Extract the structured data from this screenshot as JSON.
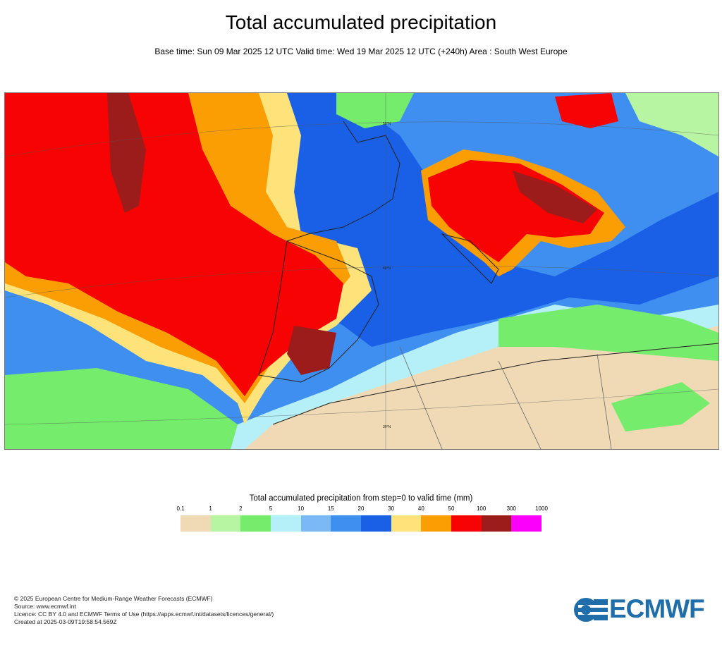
{
  "header": {
    "title": "Total accumulated precipitation",
    "subtitle": "Base time: Sun 09 Mar 2025 12 UTC Valid time: Wed 19 Mar 2025 12 UTC (+240h) Area : South West Europe"
  },
  "map": {
    "region": "South West Europe",
    "gridlabels": [
      "30°N",
      "40°N",
      "50°N"
    ]
  },
  "legend": {
    "title": "Total accumulated precipitation from step=0 to valid time (mm)",
    "ticks": [
      "0.1",
      "1",
      "2",
      "5",
      "10",
      "15",
      "20",
      "30",
      "40",
      "50",
      "100",
      "300",
      "1000"
    ],
    "colors": [
      "#efdab5",
      "#b8f5a3",
      "#76ec6c",
      "#b5eff7",
      "#7ab9f5",
      "#3f8ff0",
      "#1a60e6",
      "#fde37a",
      "#fb9e04",
      "#f80303",
      "#9c1c1c",
      "#fb00fb"
    ]
  },
  "footer": {
    "lines": [
      "© 2025 European Centre for Medium-Range Weather Forecasts (ECMWF)",
      "Source: www.ecmwf.int",
      "Licence: CC BY 4.0 and ECMWF Terms of Use (https://apps.ecmwf.int/datasets/licences/general/)",
      "Created at 2025-03-09T19:58:54.569Z"
    ]
  },
  "logo": {
    "text": "ECMWF",
    "color": "#1f6ea9"
  }
}
